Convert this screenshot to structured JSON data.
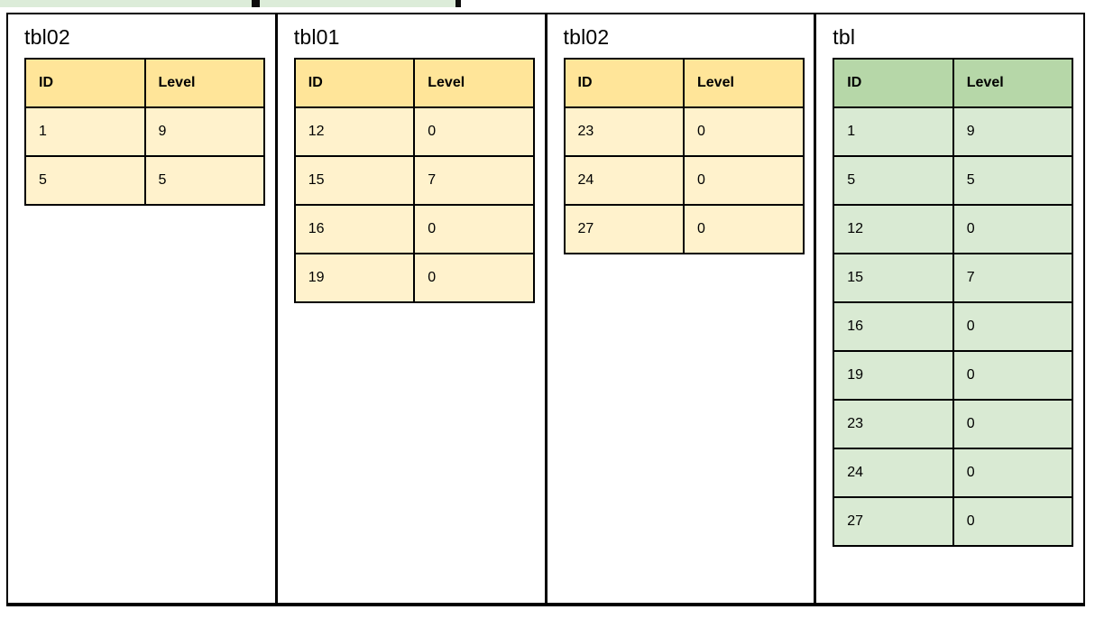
{
  "colors": {
    "border": "#000000",
    "highlight_strip": "#dcecd9",
    "yellow_header": "#ffe599",
    "yellow_row": "#fff2cc",
    "green_header": "#b6d7a8",
    "green_row": "#d9ead3"
  },
  "panels": [
    {
      "title": "tbl02",
      "theme": "yellow",
      "columns": [
        "ID",
        "Level"
      ],
      "rows": [
        [
          "1",
          "9"
        ],
        [
          "5",
          "5"
        ]
      ]
    },
    {
      "title": "tbl01",
      "theme": "yellow",
      "columns": [
        "ID",
        "Level"
      ],
      "rows": [
        [
          "12",
          "0"
        ],
        [
          "15",
          "7"
        ],
        [
          "16",
          "0"
        ],
        [
          "19",
          "0"
        ]
      ]
    },
    {
      "title": "tbl02",
      "theme": "yellow",
      "columns": [
        "ID",
        "Level"
      ],
      "rows": [
        [
          "23",
          "0"
        ],
        [
          "24",
          "0"
        ],
        [
          "27",
          "0"
        ]
      ]
    },
    {
      "title": "tbl",
      "theme": "green",
      "columns": [
        "ID",
        "Level"
      ],
      "rows": [
        [
          "1",
          "9"
        ],
        [
          "5",
          "5"
        ],
        [
          "12",
          "0"
        ],
        [
          "15",
          "7"
        ],
        [
          "16",
          "0"
        ],
        [
          "19",
          "0"
        ],
        [
          "23",
          "0"
        ],
        [
          "24",
          "0"
        ],
        [
          "27",
          "0"
        ]
      ]
    }
  ]
}
